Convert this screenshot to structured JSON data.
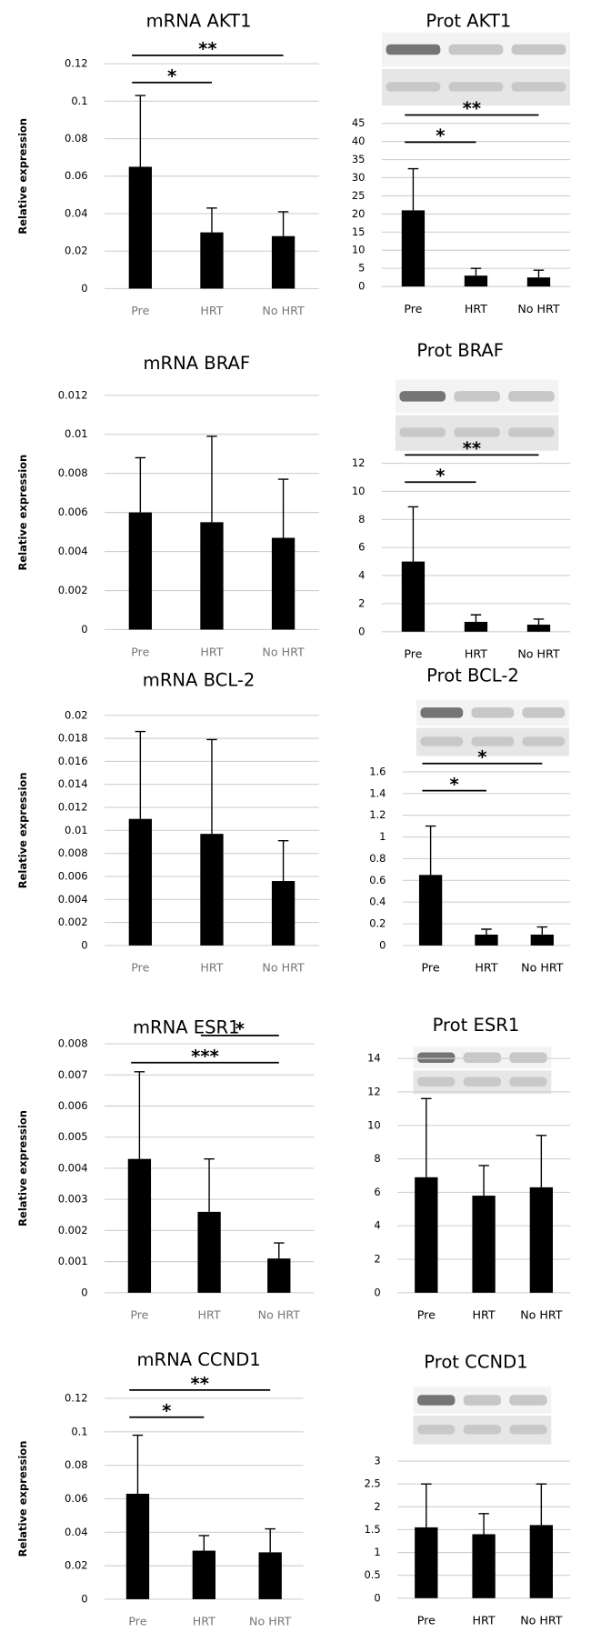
{
  "chart_data": [
    {
      "type": "bar",
      "title": "mRNA AKT1",
      "y_label": "Relative expression",
      "categories": [
        "Pre",
        "HRT",
        "No HRT"
      ],
      "values": [
        0.065,
        0.03,
        0.028
      ],
      "errors": [
        0.038,
        0.013,
        0.013
      ],
      "ylim": [
        0,
        0.12
      ],
      "yticks": [
        0,
        0.02,
        0.04,
        0.06,
        0.08,
        0.1,
        0.12
      ],
      "color": "#000000",
      "grid": true,
      "annotations": [
        {
          "text": "*",
          "from": "Pre",
          "to": "HRT"
        },
        {
          "text": "**",
          "from": "Pre",
          "to": "No HRT"
        }
      ]
    },
    {
      "type": "bar",
      "title": "Prot AKT1",
      "categories": [
        "Pre",
        "HRT",
        "No HRT"
      ],
      "values": [
        21,
        3,
        2.5
      ],
      "errors": [
        11.5,
        2,
        2
      ],
      "ylim": [
        0,
        45
      ],
      "yticks": [
        0,
        5,
        10,
        15,
        20,
        25,
        30,
        35,
        40,
        45
      ],
      "color": "#000000",
      "grid": true,
      "annotations": [
        {
          "text": "*",
          "from": "Pre",
          "to": "HRT"
        },
        {
          "text": "**",
          "from": "Pre",
          "to": "No HRT"
        }
      ]
    },
    {
      "type": "bar",
      "title": "mRNA BRAF",
      "y_label": "Relative expression",
      "categories": [
        "Pre",
        "HRT",
        "No HRT"
      ],
      "values": [
        0.006,
        0.0055,
        0.0047
      ],
      "errors": [
        0.0028,
        0.0044,
        0.003
      ],
      "ylim": [
        0,
        0.012
      ],
      "yticks": [
        0,
        0.002,
        0.004,
        0.006,
        0.008,
        0.01,
        0.012
      ],
      "color": "#000000",
      "grid": true,
      "annotations": []
    },
    {
      "type": "bar",
      "title": "Prot BRAF",
      "categories": [
        "Pre",
        "HRT",
        "No HRT"
      ],
      "values": [
        5,
        0.7,
        0.5
      ],
      "errors": [
        3.9,
        0.5,
        0.4
      ],
      "ylim": [
        0,
        12
      ],
      "yticks": [
        0,
        2,
        4,
        6,
        8,
        10,
        12
      ],
      "color": "#000000",
      "grid": true,
      "annotations": [
        {
          "text": "*",
          "from": "Pre",
          "to": "HRT"
        },
        {
          "text": "**",
          "from": "Pre",
          "to": "No HRT"
        }
      ]
    },
    {
      "type": "bar",
      "title": "mRNA BCL-2",
      "y_label": "Relative expression",
      "categories": [
        "Pre",
        "HRT",
        "No HRT"
      ],
      "values": [
        0.011,
        0.0097,
        0.0056
      ],
      "errors": [
        0.0076,
        0.0082,
        0.0035
      ],
      "ylim": [
        0,
        0.02
      ],
      "yticks": [
        0,
        0.002,
        0.004,
        0.006,
        0.008,
        0.01,
        0.012,
        0.014,
        0.016,
        0.018,
        0.02
      ],
      "color": "#000000",
      "grid": true,
      "annotations": []
    },
    {
      "type": "bar",
      "title": "Prot BCL-2",
      "categories": [
        "Pre",
        "HRT",
        "No HRT"
      ],
      "values": [
        0.65,
        0.1,
        0.1
      ],
      "errors": [
        0.45,
        0.05,
        0.07
      ],
      "ylim": [
        0,
        1.6
      ],
      "yticks": [
        0,
        0.2,
        0.4,
        0.6,
        0.8,
        1,
        1.2,
        1.4,
        1.6
      ],
      "color": "#000000",
      "grid": true,
      "annotations": [
        {
          "text": "*",
          "from": "Pre",
          "to": "HRT"
        },
        {
          "text": "*",
          "from": "Pre",
          "to": "No HRT"
        }
      ]
    },
    {
      "type": "bar",
      "title": "mRNA ESR1",
      "y_label": "Relative expression",
      "categories": [
        "Pre",
        "HRT",
        "No HRT"
      ],
      "values": [
        0.0043,
        0.0026,
        0.0011
      ],
      "errors": [
        0.0028,
        0.0017,
        0.0005
      ],
      "ylim": [
        0,
        0.008
      ],
      "yticks": [
        0,
        0.001,
        0.002,
        0.003,
        0.004,
        0.005,
        0.006,
        0.007,
        0.008
      ],
      "color": "#000000",
      "grid": true,
      "annotations": [
        {
          "text": "***",
          "from": "Pre",
          "to": "No HRT"
        },
        {
          "text": "*",
          "from": "HRT",
          "to": "No HRT"
        }
      ]
    },
    {
      "type": "bar",
      "title": "Prot ESR1",
      "categories": [
        "Pre",
        "HRT",
        "No HRT"
      ],
      "values": [
        6.9,
        5.8,
        6.3
      ],
      "errors": [
        4.7,
        1.8,
        3.1
      ],
      "ylim": [
        0,
        14
      ],
      "yticks": [
        0,
        2,
        4,
        6,
        8,
        10,
        12,
        14
      ],
      "color": "#000000",
      "grid": true,
      "annotations": []
    },
    {
      "type": "bar",
      "title": "mRNA CCND1",
      "y_label": "Relative expression",
      "categories": [
        "Pre",
        "HRT",
        "No HRT"
      ],
      "values": [
        0.063,
        0.029,
        0.028
      ],
      "errors": [
        0.035,
        0.009,
        0.014
      ],
      "ylim": [
        0,
        0.12
      ],
      "yticks": [
        0,
        0.02,
        0.04,
        0.06,
        0.08,
        0.1,
        0.12
      ],
      "color": "#000000",
      "grid": true,
      "annotations": [
        {
          "text": "*",
          "from": "Pre",
          "to": "HRT"
        },
        {
          "text": "**",
          "from": "Pre",
          "to": "No HRT"
        }
      ]
    },
    {
      "type": "bar",
      "title": "Prot CCND1",
      "categories": [
        "Pre",
        "HRT",
        "No HRT"
      ],
      "values": [
        1.55,
        1.4,
        1.6
      ],
      "errors": [
        0.95,
        0.45,
        0.9
      ],
      "ylim": [
        0,
        3
      ],
      "yticks": [
        0,
        0.5,
        1,
        1.5,
        2,
        2.5,
        3
      ],
      "color": "#000000",
      "grid": true,
      "annotations": []
    }
  ]
}
